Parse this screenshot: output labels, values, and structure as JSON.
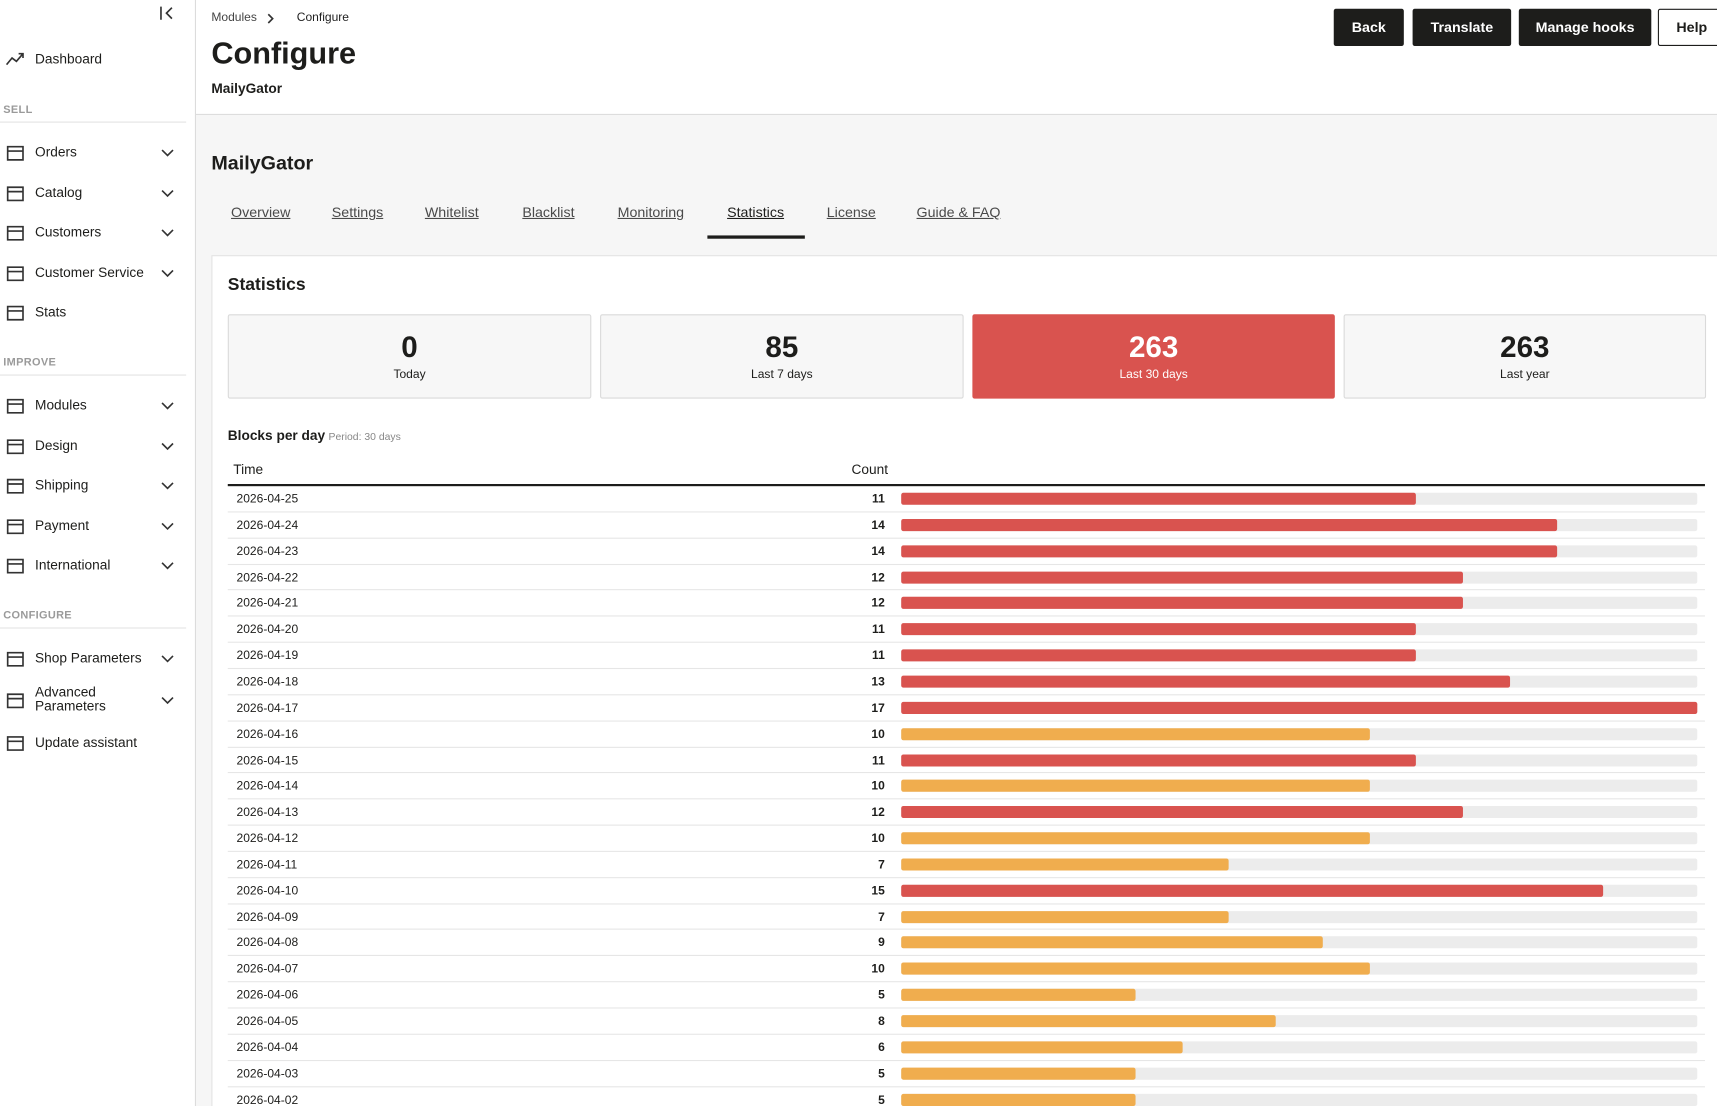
{
  "sidebar": [
    {
      "label": "Dashboard",
      "expandable": false
    },
    {
      "heading": "SELL"
    },
    {
      "label": "Orders",
      "expandable": true
    },
    {
      "label": "Catalog",
      "expandable": true
    },
    {
      "label": "Customers",
      "expandable": true
    },
    {
      "label": "Customer Service",
      "expandable": true
    },
    {
      "label": "Stats",
      "expandable": false
    },
    {
      "heading": "IMPROVE"
    },
    {
      "label": "Modules",
      "expandable": true
    },
    {
      "label": "Design",
      "expandable": true
    },
    {
      "label": "Shipping",
      "expandable": true
    },
    {
      "label": "Payment",
      "expandable": true
    },
    {
      "label": "International",
      "expandable": true
    },
    {
      "heading": "CONFIGURE"
    },
    {
      "label": "Shop Parameters",
      "expandable": true
    },
    {
      "label": "Advanced Parameters",
      "expandable": true
    },
    {
      "label": "Update assistant",
      "expandable": false
    }
  ],
  "header": {
    "breadcrumb": [
      "Modules",
      "Configure"
    ],
    "title": "Configure",
    "subtitle": "MailyGator",
    "buttons": [
      "Back",
      "Translate",
      "Manage hooks",
      "Help"
    ]
  },
  "panel": {
    "title": "MailyGator",
    "tabs": [
      "Overview",
      "Settings",
      "Whitelist",
      "Blacklist",
      "Monitoring",
      "Statistics",
      "License",
      "Guide & FAQ"
    ],
    "active_tab": 5
  },
  "statistics": {
    "title": "Statistics",
    "cards": [
      {
        "value": "0",
        "label": "Today",
        "highlighted": false
      },
      {
        "value": "85",
        "label": "Last 7 days",
        "highlighted": false
      },
      {
        "value": "263",
        "label": "Last 30 days",
        "highlighted": true
      },
      {
        "value": "263",
        "label": "Last year",
        "highlighted": false
      }
    ],
    "table_title": "Blocks per day",
    "period": "Period: 30 days",
    "columns": [
      "Time",
      "Count"
    ],
    "rows": [
      {
        "time": "2026-04-25",
        "count": 11,
        "color": "#d9534f"
      },
      {
        "time": "2026-04-24",
        "count": 14,
        "color": "#d9534f"
      },
      {
        "time": "2026-04-23",
        "count": 14,
        "color": "#d9534f"
      },
      {
        "time": "2026-04-22",
        "count": 12,
        "color": "#d9534f"
      },
      {
        "time": "2026-04-21",
        "count": 12,
        "color": "#d9534f"
      },
      {
        "time": "2026-04-20",
        "count": 11,
        "color": "#d9534f"
      },
      {
        "time": "2026-04-19",
        "count": 11,
        "color": "#d9534f"
      },
      {
        "time": "2026-04-18",
        "count": 13,
        "color": "#d9534f"
      },
      {
        "time": "2026-04-17",
        "count": 17,
        "color": "#d9534f"
      },
      {
        "time": "2026-04-16",
        "count": 10,
        "color": "#f0ad4e"
      },
      {
        "time": "2026-04-15",
        "count": 11,
        "color": "#d9534f"
      },
      {
        "time": "2026-04-14",
        "count": 10,
        "color": "#f0ad4e"
      },
      {
        "time": "2026-04-13",
        "count": 12,
        "color": "#d9534f"
      },
      {
        "time": "2026-04-12",
        "count": 10,
        "color": "#f0ad4e"
      },
      {
        "time": "2026-04-11",
        "count": 7,
        "color": "#f0ad4e"
      },
      {
        "time": "2026-04-10",
        "count": 15,
        "color": "#d9534f"
      },
      {
        "time": "2026-04-09",
        "count": 7,
        "color": "#f0ad4e"
      },
      {
        "time": "2026-04-08",
        "count": 9,
        "color": "#f0ad4e"
      },
      {
        "time": "2026-04-07",
        "count": 10,
        "color": "#f0ad4e"
      },
      {
        "time": "2026-04-06",
        "count": 5,
        "color": "#f0ad4e"
      },
      {
        "time": "2026-04-05",
        "count": 8,
        "color": "#f0ad4e"
      },
      {
        "time": "2026-04-04",
        "count": 6,
        "color": "#f0ad4e"
      },
      {
        "time": "2026-04-03",
        "count": 5,
        "color": "#f0ad4e"
      },
      {
        "time": "2026-04-02",
        "count": 5,
        "color": "#f0ad4e"
      }
    ]
  }
}
